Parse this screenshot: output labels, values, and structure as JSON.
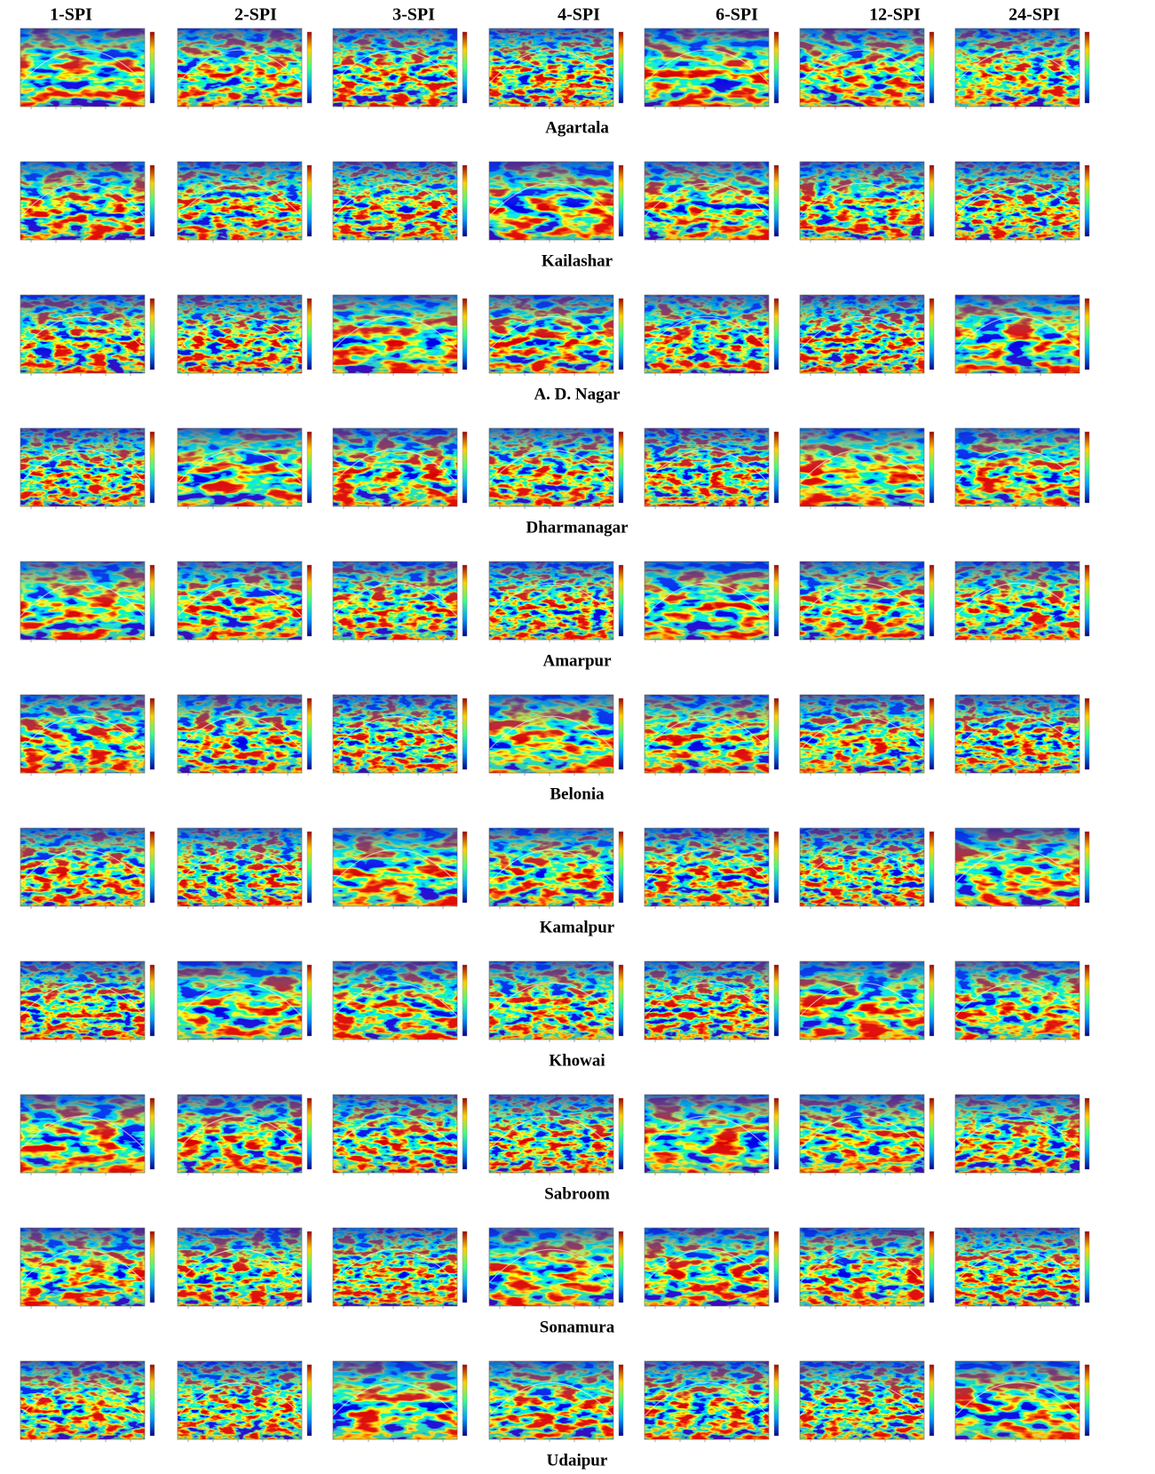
{
  "columns": [
    "1-SPI",
    "2-SPI",
    "3-SPI",
    "4-SPI",
    "6-SPI",
    "12-SPI",
    "24-SPI"
  ],
  "rows": [
    "Agartala",
    "Kailashar",
    "A. D. Nagar",
    "Dharmanagar",
    "Amarpur",
    "Belonia",
    "Kamalpur",
    "Khowai",
    "Sabroom",
    "Sonamura",
    "Udaipur"
  ]
}
